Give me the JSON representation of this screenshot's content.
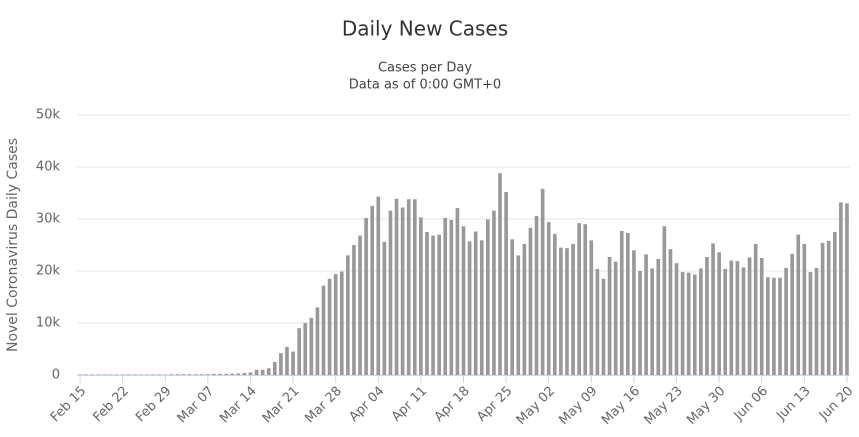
{
  "chart_data": {
    "type": "bar",
    "title": "Daily New Cases",
    "subtitle": [
      "Cases per Day",
      "Data as of 0:00 GMT+0"
    ],
    "y_label": "Novel Coronavirus Daily Cases",
    "color": "#999999",
    "grid": true,
    "ylim": [
      0,
      50000
    ],
    "yticks": [
      0,
      {
        "value": 10000,
        "label": "10k"
      },
      {
        "value": 20000,
        "label": "20k"
      },
      {
        "value": 30000,
        "label": "30k"
      },
      {
        "value": 40000,
        "label": "40k"
      },
      {
        "value": 50000,
        "label": "50k"
      }
    ],
    "categories": [
      "Feb 15",
      null,
      null,
      null,
      null,
      null,
      null,
      "Feb 22",
      null,
      null,
      null,
      null,
      null,
      null,
      "Feb 29",
      null,
      null,
      null,
      null,
      null,
      null,
      "Mar 07",
      null,
      null,
      null,
      null,
      null,
      null,
      "Mar 14",
      null,
      null,
      null,
      null,
      null,
      null,
      "Mar 21",
      null,
      null,
      null,
      null,
      null,
      null,
      "Mar 28",
      null,
      null,
      null,
      null,
      null,
      null,
      "Apr 04",
      null,
      null,
      null,
      null,
      null,
      null,
      "Apr 11",
      null,
      null,
      null,
      null,
      null,
      null,
      "Apr 18",
      null,
      null,
      null,
      null,
      null,
      null,
      "Apr 25",
      null,
      null,
      null,
      null,
      null,
      null,
      "May 02",
      null,
      null,
      null,
      null,
      null,
      null,
      "May 09",
      null,
      null,
      null,
      null,
      null,
      null,
      "May 16",
      null,
      null,
      null,
      null,
      null,
      null,
      "May 23",
      null,
      null,
      null,
      null,
      null,
      null,
      "May 30",
      null,
      null,
      null,
      null,
      null,
      null,
      "Jun 06",
      null,
      null,
      null,
      null,
      null,
      null,
      "Jun 13",
      null,
      null,
      null,
      null,
      null,
      null,
      "Jun 20"
    ],
    "values": [
      100,
      100,
      100,
      100,
      100,
      100,
      100,
      100,
      100,
      100,
      100,
      100,
      100,
      100,
      100,
      150,
      150,
      150,
      150,
      150,
      150,
      150,
      200,
      200,
      200,
      250,
      300,
      400,
      500,
      1000,
      1000,
      1300,
      2500,
      4200,
      5400,
      4500,
      9000,
      10000,
      11000,
      13000,
      17200,
      18500,
      19400,
      19900,
      23000,
      25000,
      26800,
      30200,
      32500,
      34300,
      25600,
      31600,
      33900,
      32200,
      33800,
      33800,
      30300,
      27500,
      26800,
      27000,
      30200,
      29800,
      32100,
      28600,
      25700,
      27600,
      25900,
      29900,
      31600,
      38800,
      35200,
      26100,
      23000,
      25200,
      28300,
      30600,
      35800,
      29400,
      27100,
      24500,
      24400,
      25200,
      29200,
      29000,
      25900,
      20400,
      18500,
      22700,
      21800,
      27700,
      27300,
      24000,
      20000,
      23200,
      20500,
      22300,
      28600,
      24200,
      21500,
      19800,
      19700,
      19300,
      20500,
      22700,
      25300,
      23600,
      20400,
      22000,
      21900,
      20700,
      22600,
      25200,
      22500,
      18800,
      18700,
      18700,
      20600,
      23300,
      27000,
      25200,
      19800,
      20600,
      25400,
      25800,
      27500,
      33200,
      33000
    ]
  }
}
